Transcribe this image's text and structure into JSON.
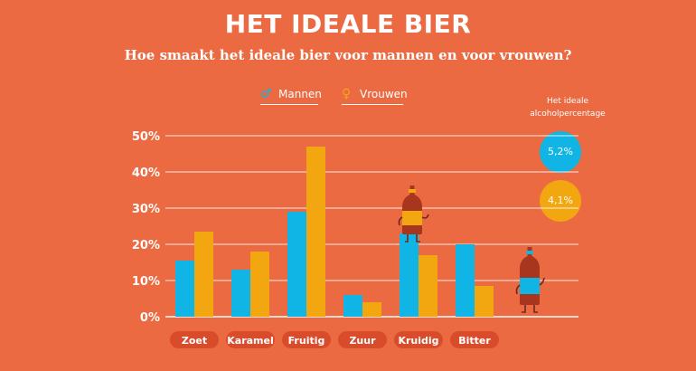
{
  "header": {
    "title": "HET IDEALE BIER",
    "subtitle": "Hoe smaakt het ideale bier voor mannen en voor vrouwen?"
  },
  "legend": {
    "men_symbol": "♂",
    "men_label": "Mannen",
    "women_symbol": "♀",
    "women_label": "Vrouwen"
  },
  "alcohol": {
    "label": "Het ideale alcoholpercentage",
    "men_value": "5,2%",
    "women_value": "4,1%"
  },
  "colors": {
    "background": "#EC6A42",
    "men": "#10B5E5",
    "women": "#F2A60F",
    "category_pill": "#D84C2C"
  },
  "icons": [
    "male-symbol-icon",
    "female-symbol-icon",
    "beer-bottle-icon"
  ],
  "chart_data": {
    "type": "bar",
    "categories": [
      "Zoet",
      "Karamel",
      "Fruitig",
      "Zuur",
      "Kruidig",
      "Bitter"
    ],
    "series": [
      {
        "name": "Mannen",
        "values": [
          15.5,
          13,
          29,
          6,
          23,
          20
        ]
      },
      {
        "name": "Vrouwen",
        "values": [
          23.5,
          18,
          47,
          4,
          17,
          8.5
        ]
      }
    ],
    "ylim": [
      0,
      50
    ],
    "yticks": [
      "0%",
      "10%",
      "20%",
      "30%",
      "40%",
      "50%"
    ],
    "grid": true,
    "legend_position": "top"
  }
}
